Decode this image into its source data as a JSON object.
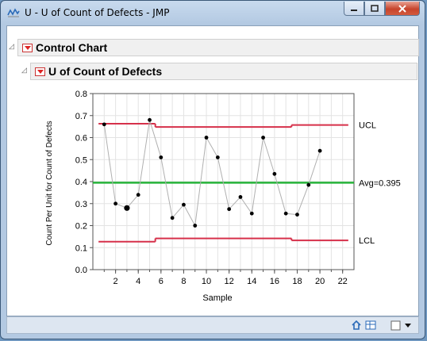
{
  "window": {
    "title": "U - U of Count of Defects - JMP"
  },
  "outline": {
    "control_chart": "Control Chart",
    "u_chart": "U of Count of Defects"
  },
  "chart_data": {
    "type": "line",
    "xlabel": "Sample",
    "ylabel": "Count Per Unit for Count of Defects",
    "xlim": [
      0,
      23
    ],
    "ylim": [
      0,
      0.8
    ],
    "x_ticks": [
      2,
      4,
      6,
      8,
      10,
      12,
      14,
      16,
      18,
      20,
      22
    ],
    "y_ticks": [
      0.0,
      0.1,
      0.2,
      0.3,
      0.4,
      0.5,
      0.6,
      0.7,
      0.8
    ],
    "y_tick_labels": [
      "0.0",
      "0.1",
      "0.2",
      "0.3",
      "0.4",
      "0.5",
      "0.6",
      "0.7",
      "0.8"
    ],
    "grid": true,
    "series": [
      {
        "x": [
          1,
          2,
          3,
          4,
          5,
          6,
          7,
          8,
          9,
          10,
          11,
          12,
          13,
          14,
          15,
          16,
          17,
          18,
          19,
          20
        ],
        "values": [
          0.66,
          0.3,
          0.28,
          0.34,
          0.68,
          0.51,
          0.235,
          0.295,
          0.2,
          0.6,
          0.51,
          0.275,
          0.33,
          0.255,
          0.6,
          0.435,
          0.255,
          0.25,
          0.385,
          0.54
        ],
        "color": "#b0b0b0"
      }
    ],
    "ucl": {
      "label": "UCL",
      "segments": [
        {
          "x": [
            0.5,
            5.5
          ],
          "y": 0.663
        },
        {
          "x": [
            5.5,
            17.5
          ],
          "y": 0.648
        },
        {
          "x": [
            17.5,
            22.5
          ],
          "y": 0.657
        }
      ],
      "color": "#d6304a"
    },
    "avg": {
      "label": "Avg=0.395",
      "y": 0.395,
      "color": "#27b33a"
    },
    "lcl": {
      "label": "LCL",
      "segments": [
        {
          "x": [
            0.5,
            5.5
          ],
          "y": 0.127
        },
        {
          "x": [
            5.5,
            17.5
          ],
          "y": 0.142
        },
        {
          "x": [
            17.5,
            22.5
          ],
          "y": 0.133
        }
      ],
      "color": "#d6304a"
    }
  }
}
